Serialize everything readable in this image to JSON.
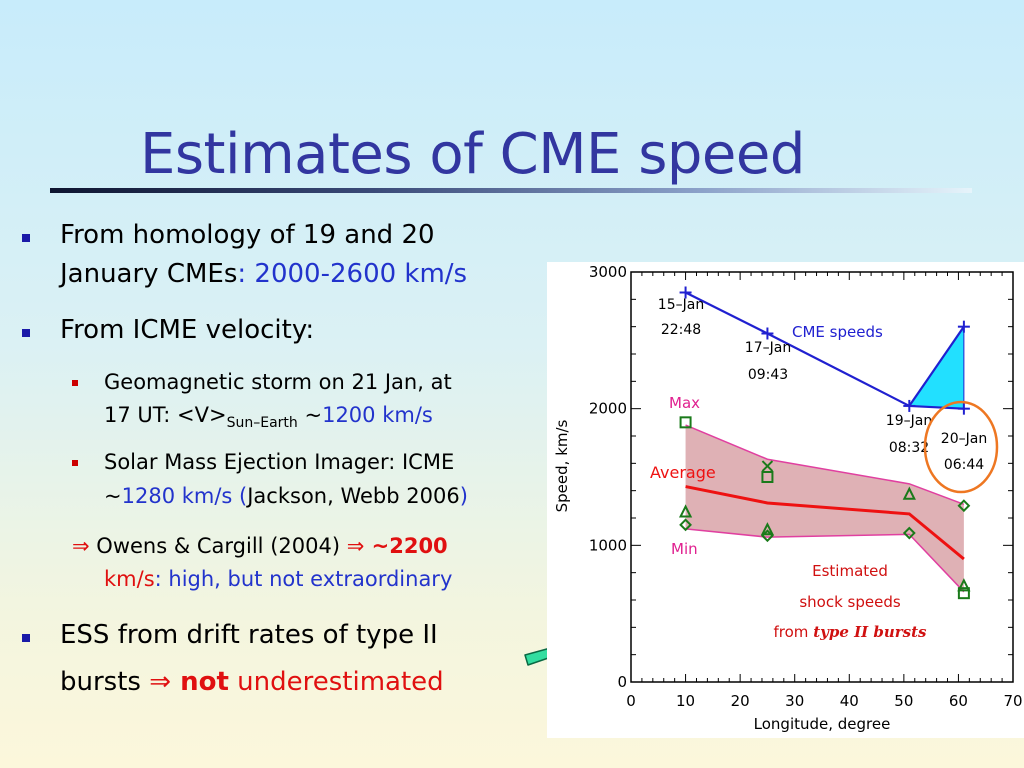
{
  "slide": {
    "title": "Estimates of CME speed",
    "bullets": {
      "b1_line1": "From homology of 19 and 20",
      "b1_line2_a": "January CMEs",
      "b1_line2_b": ": 2000-2600 km/s",
      "b2": "From ICME velocity:",
      "s1_line1": "Geomagnetic storm on 21 Jan, at",
      "s1_line2_a": "17 UT: <V>",
      "s1_sub": "Sun–Earth",
      "s1_line2_b": " ~",
      "s1_line2_c": "1200 km/s",
      "s2_line1": "Solar Mass Ejection Imager: ICME",
      "s2_line2_a": "~",
      "s2_line2_b": "1280 km/s (",
      "s2_line2_c": "Jackson, Webb 2006",
      "s2_line2_d": ")",
      "i1_arrow": "⇒",
      "i1_a": " Owens & Cargill (2004) ",
      "i1_arrow2": "⇒",
      "i1_b": " ~2200",
      "i1_line2_a": "km/s",
      "i1_line2_b": ": high, but not extraordinary",
      "b3_line1": "ESS from drift rates of type II",
      "b3_line2_a": "bursts ",
      "b3_arrow": "⇒",
      "b3_not": " not",
      "b3_rest": " underestimated"
    },
    "colors": {
      "title": "#3236a0",
      "bullet_square": "#1a1aa8",
      "highlight_blue": "#2233cc",
      "highlight_red": "#e01010",
      "pointer_arrow": "#33dda0"
    }
  },
  "chart_data": {
    "type": "line",
    "xlabel": "Longitude, degree",
    "ylabel": "Speed, km/s",
    "xlim": [
      0,
      70
    ],
    "ylim": [
      0,
      3000
    ],
    "xticks": [
      0,
      10,
      20,
      30,
      40,
      50,
      60,
      70
    ],
    "yticks": [
      0,
      1000,
      2000,
      3000
    ],
    "series": [
      {
        "name": "CME speeds",
        "color": "#2020d0",
        "x": [
          10,
          25,
          51,
          61
        ],
        "y": [
          2850,
          2550,
          2020,
          2000
        ],
        "marker": "plus"
      },
      {
        "name": "Average",
        "color": "#ee1111",
        "x": [
          10,
          25,
          51,
          61
        ],
        "y": [
          1430,
          1310,
          1230,
          900
        ]
      }
    ],
    "speed_range": {
      "x": 61,
      "y_low": 2000,
      "y_high": 2600,
      "color": "#22e0ff"
    },
    "band": {
      "x": [
        10,
        25,
        51,
        61
      ],
      "max": [
        1880,
        1630,
        1450,
        1300
      ],
      "min": [
        1120,
        1060,
        1080,
        660
      ],
      "fill": "#d9a3a8",
      "edge": "#e040a0"
    },
    "scatter": {
      "square": {
        "x": [
          10,
          25,
          61
        ],
        "y": [
          1900,
          1500,
          650
        ]
      },
      "triangle": {
        "x": [
          10,
          25,
          51,
          61
        ],
        "y": [
          1240,
          1110,
          1370,
          700
        ]
      },
      "diamond": {
        "x": [
          10,
          25,
          51,
          61
        ],
        "y": [
          1150,
          1070,
          1090,
          1290
        ]
      },
      "cross": {
        "x": [
          25
        ],
        "y": [
          1580
        ]
      }
    },
    "cme_labels": [
      {
        "date": "15–Jan",
        "time": "22:48"
      },
      {
        "date": "17–Jan",
        "time": "09:43"
      },
      {
        "date": "19–Jan",
        "time": "08:32"
      },
      {
        "date": "20–Jan",
        "time": "06:44"
      }
    ],
    "annotations": {
      "max": "Max",
      "average": "Average",
      "min": "Min",
      "cme_legend": "CME speeds",
      "shock1": "Estimated",
      "shock2": "shock speeds",
      "shock3a": "from ",
      "shock3b": "type II bursts"
    }
  }
}
